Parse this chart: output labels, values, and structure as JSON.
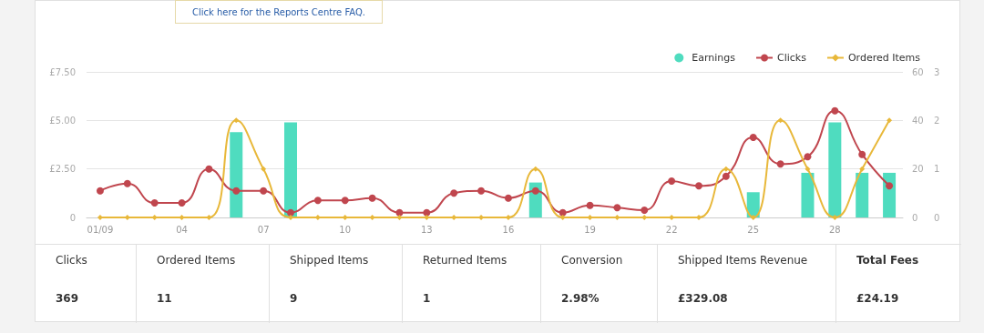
{
  "chart_data": [
    {
      "type": "bar",
      "annotations": [
        "Click here for the Reports Centre FAQ."
      ],
      "categories": [
        "01/09",
        null,
        null,
        "04",
        null,
        null,
        "07",
        null,
        null,
        "10",
        null,
        null,
        "13",
        null,
        null,
        "16",
        null,
        null,
        "19",
        null,
        null,
        "22",
        null,
        null,
        "25",
        null,
        null,
        "28",
        null,
        null
      ],
      "series": [
        {
          "name": "Earnings",
          "type": "bar",
          "axis": "y",
          "color": "#4fdcbf",
          "marker": "circle",
          "values": [
            0,
            0,
            0,
            0,
            0,
            4.4,
            0,
            4.9,
            0,
            0,
            0,
            0,
            0,
            0,
            0,
            0,
            1.8,
            0,
            0,
            0,
            0,
            0,
            0,
            0,
            1.3,
            0,
            2.3,
            4.9,
            2.3,
            2.3
          ]
        },
        {
          "name": "Clicks",
          "type": "line",
          "axis": "y2",
          "color": "#c0464e",
          "marker": "circle",
          "values": [
            11,
            14,
            6,
            6,
            20,
            11,
            11,
            2,
            7,
            7,
            8,
            2,
            2,
            10,
            11,
            8,
            11,
            2,
            5,
            4,
            3,
            15,
            13,
            17,
            33,
            22,
            25,
            44,
            26,
            13
          ]
        },
        {
          "name": "Ordered Items",
          "type": "line",
          "axis": "y3",
          "color": "#e8b83a",
          "marker": "diamond",
          "values": [
            0,
            0,
            0,
            0,
            0,
            2,
            1,
            0,
            0,
            0,
            0,
            0,
            0,
            0,
            0,
            0,
            1,
            0,
            0,
            0,
            0,
            0,
            0,
            1,
            0,
            2,
            1,
            0,
            1,
            2
          ]
        }
      ],
      "ylim": [
        0,
        7.5
      ],
      "yticks": [
        {
          "value": 0,
          "label": "0"
        },
        {
          "value": 2.5,
          "label": "£2.50"
        },
        {
          "value": 5,
          "label": "£5.00"
        },
        {
          "value": 7.5,
          "label": "£7.50"
        }
      ],
      "y2lim": [
        0,
        60
      ],
      "y2ticks": [
        0,
        20,
        40,
        60
      ],
      "y3lim": [
        0,
        3
      ],
      "y3ticks": [
        0,
        1,
        2,
        3
      ],
      "grid": "y",
      "legend": "top right"
    },
    {
      "type": "other",
      "categories": [
        "Clicks",
        "Ordered Items",
        "Shipped Items",
        "Returned Items",
        "Conversion",
        "Shipped Items Revenue",
        "Total Fees"
      ],
      "value_labels": [
        "369",
        "11",
        "9",
        "1",
        "2.98%",
        "£329.08",
        "£24.19"
      ]
    }
  ]
}
